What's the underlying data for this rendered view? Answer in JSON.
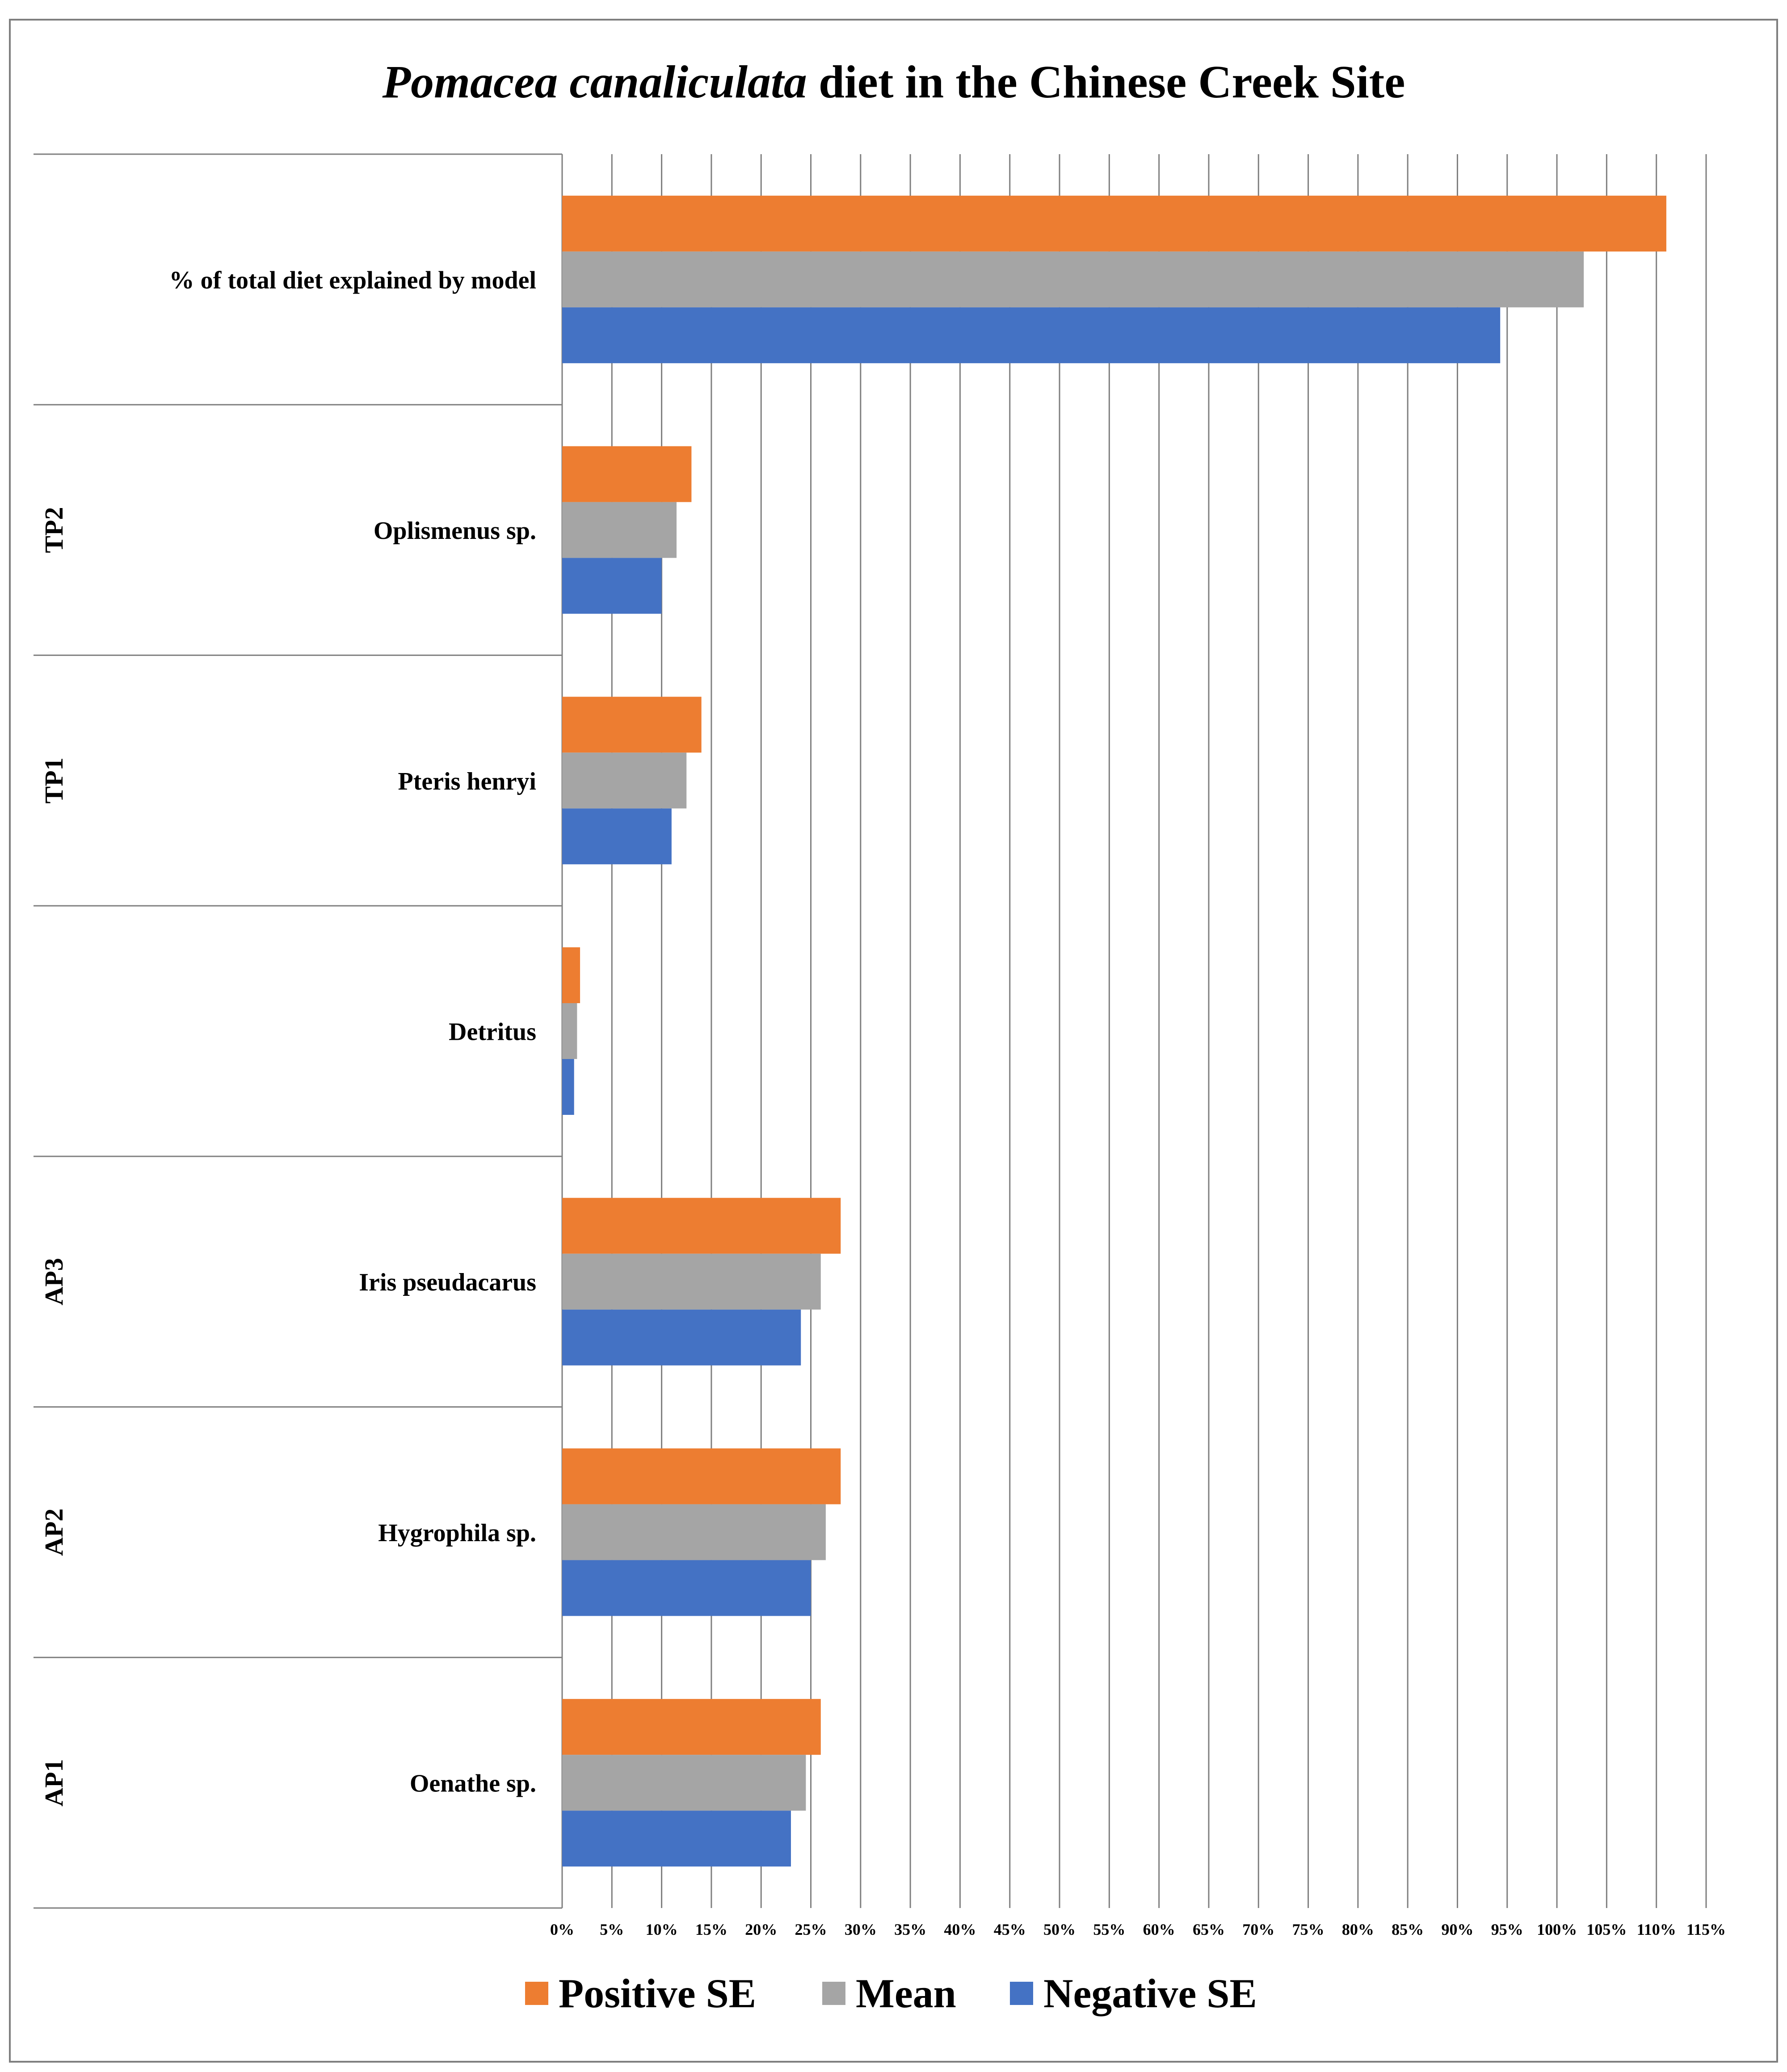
{
  "chart_data": {
    "type": "bar",
    "orientation": "horizontal",
    "title": {
      "italic_part": "Pomacea canaliculata",
      "rest": " diet in the Chinese Creek Site"
    },
    "xlabel": "",
    "ylabel": "",
    "xlim": [
      0,
      115
    ],
    "x_tick_step": 5,
    "x_tick_suffix": "%",
    "grid": true,
    "legend_position": "bottom",
    "categories": [
      {
        "label": "% of total diet explained by model",
        "group": ""
      },
      {
        "label": "Oplismenus sp.",
        "group": "TP2"
      },
      {
        "label": "Pteris henryi",
        "group": "TP1"
      },
      {
        "label": "Detritus",
        "group": ""
      },
      {
        "label": "Iris pseudacarus",
        "group": "AP3"
      },
      {
        "label": "Hygrophila sp.",
        "group": "AP2"
      },
      {
        "label": "Oenathe sp.",
        "group": "AP1"
      }
    ],
    "series": [
      {
        "name": "Positive SE",
        "color": "#ED7D31",
        "values": [
          111,
          13,
          14,
          1.8,
          28,
          28,
          26
        ]
      },
      {
        "name": "Mean",
        "color": "#A5A5A5",
        "values": [
          102.7,
          11.5,
          12.5,
          1.5,
          26,
          26.5,
          24.5
        ]
      },
      {
        "name": "Negative SE",
        "color": "#4472C4",
        "values": [
          94.3,
          10,
          11,
          1.2,
          24,
          25,
          23
        ]
      }
    ]
  }
}
